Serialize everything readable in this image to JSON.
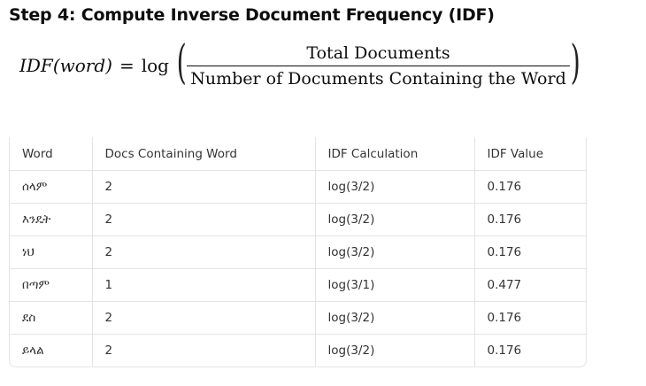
{
  "heading": "Step 4: Compute Inverse Document Frequency (IDF)",
  "formula": {
    "lhs": "IDF(word)",
    "equals": "=",
    "function": "log",
    "numerator": "Total Documents",
    "denominator": "Number of Documents Containing the Word"
  },
  "table": {
    "headers": [
      "Word",
      "Docs Containing Word",
      "IDF Calculation",
      "IDF Value"
    ],
    "rows": [
      [
        "ሰላም",
        "2",
        "log(3/2)",
        "0.176"
      ],
      [
        "እንዴት",
        "2",
        "log(3/2)",
        "0.176"
      ],
      [
        "ነህ",
        "2",
        "log(3/2)",
        "0.176"
      ],
      [
        "በጣም",
        "1",
        "log(3/1)",
        "0.477"
      ],
      [
        "ደስ",
        "2",
        "log(3/2)",
        "0.176"
      ],
      [
        "ይላል",
        "2",
        "log(3/2)",
        "0.176"
      ]
    ]
  }
}
